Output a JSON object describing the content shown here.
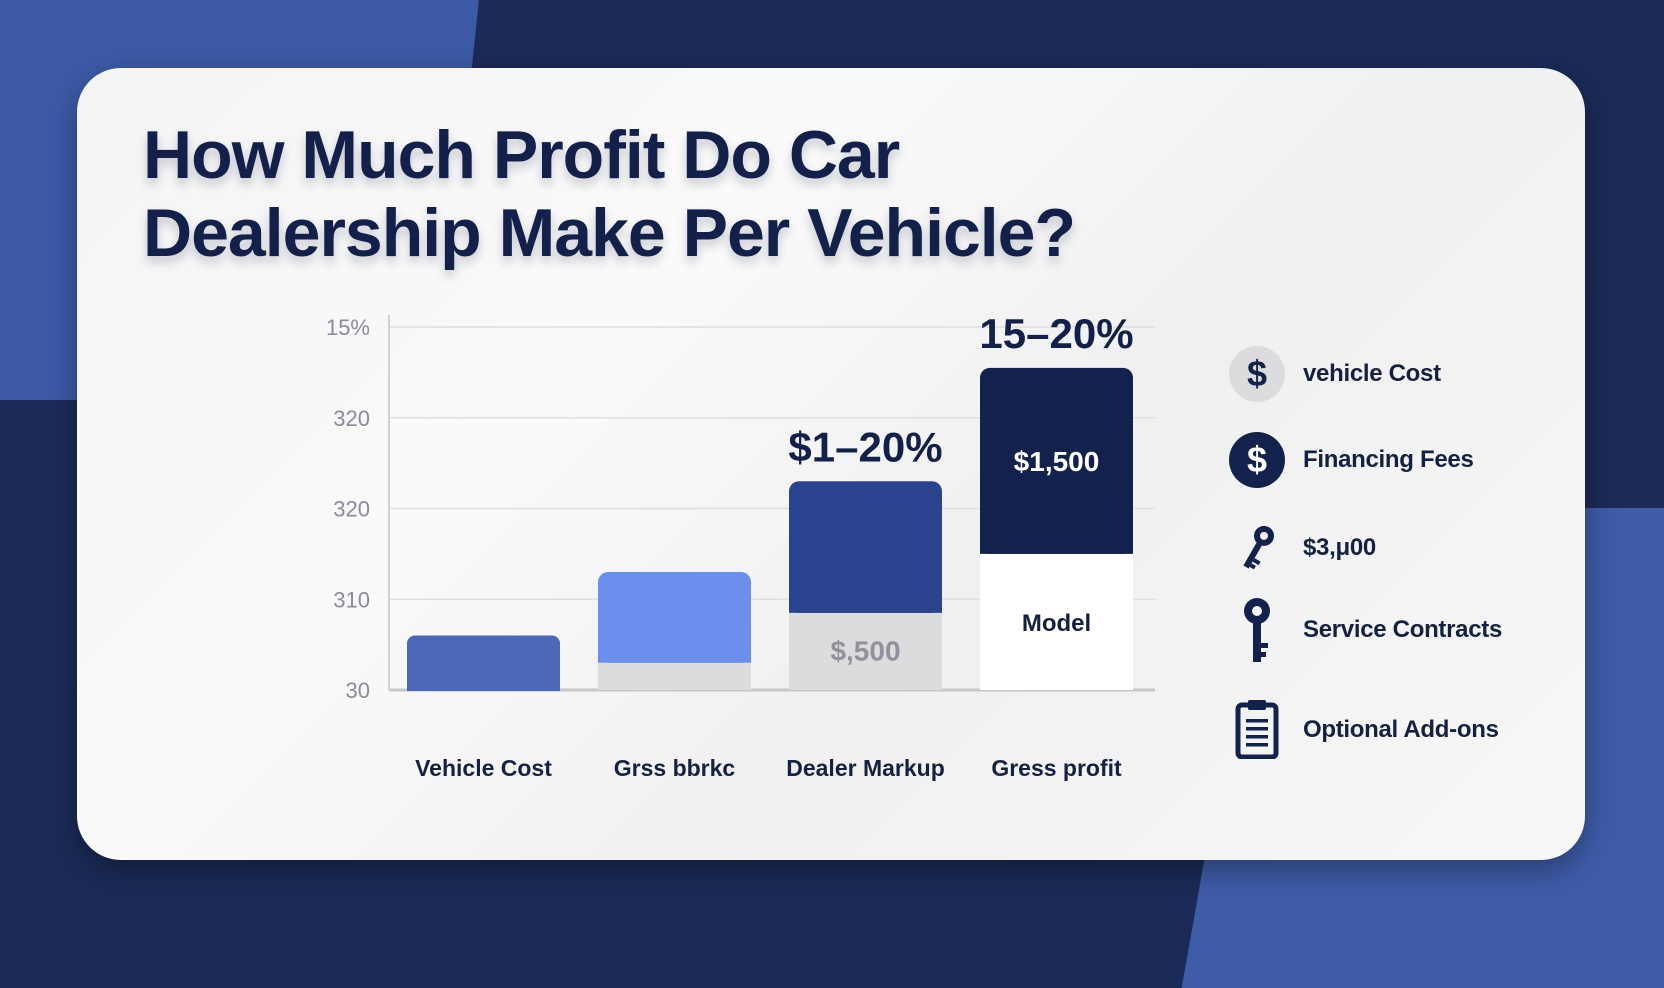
{
  "title": "How Much Profit Do Car Dealership Make Per Vehicle?",
  "colors": {
    "dark_navy": "#13224d",
    "royal_blue": "#2a438f",
    "medium_blue": "#4a67b8",
    "light_blue": "#6c8eec",
    "gray": "#dcdcde"
  },
  "chart_data": {
    "type": "bar",
    "y_ticks": [
      "30",
      "310",
      "320",
      "320",
      "15%"
    ],
    "ylim": [
      0,
      4
    ],
    "grid": true,
    "categories": [
      "Vehicle Cost",
      "Grss bbrkc",
      "Dealer Markup",
      "Gress profit"
    ],
    "segments": [
      {
        "bottom": 0.6,
        "top": 0.0,
        "color": "#4a67b8",
        "bottom_label": "",
        "top_label": ""
      },
      {
        "bottom": 0.3,
        "top": 1.0,
        "color": "#6c8eec",
        "bottom_label": "",
        "top_label": ""
      },
      {
        "bottom": 0.85,
        "top": 1.45,
        "color": "#2a438f",
        "bottom_label": "$,500",
        "top_label": ""
      },
      {
        "bottom": 1.5,
        "top": 2.05,
        "color": "#13224d",
        "bottom_label": "Model",
        "top_label": "$1,500"
      }
    ],
    "bar_headers": [
      "",
      "",
      "$1–20%",
      "15–20%"
    ]
  },
  "legend": [
    {
      "icon": "dollar-coin-light-icon",
      "glyph": "$",
      "label": "vehicle Cost"
    },
    {
      "icon": "dollar-coin-dark-icon",
      "glyph": "$",
      "label": "Financing Fees"
    },
    {
      "icon": "small-key-icon",
      "glyph": "",
      "label": "$3,μ00"
    },
    {
      "icon": "large-key-icon",
      "glyph": "",
      "label": "Service Contracts"
    },
    {
      "icon": "clipboard-icon",
      "glyph": "",
      "label": "Optional Add-ons"
    }
  ]
}
